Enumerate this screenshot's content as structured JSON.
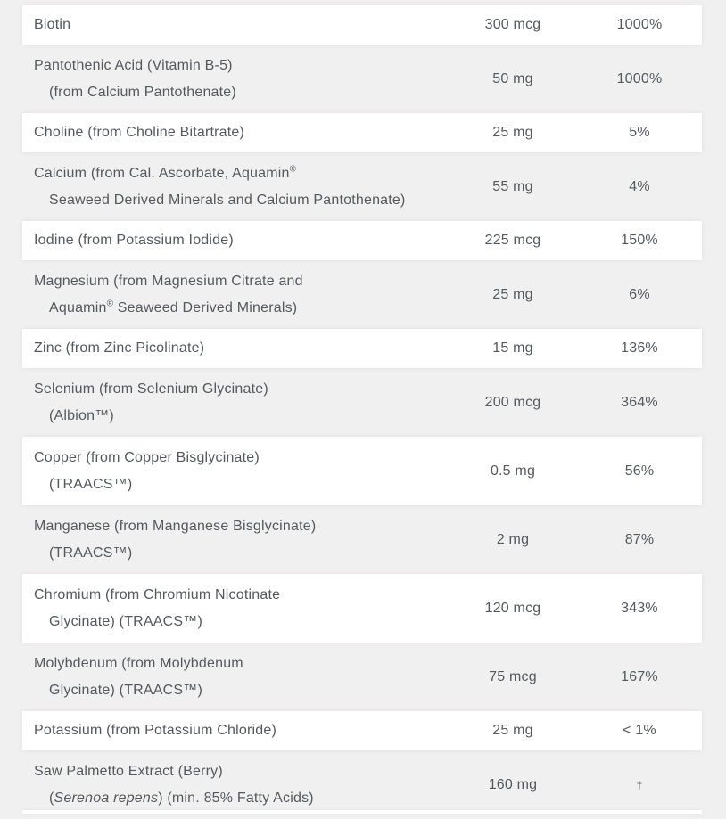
{
  "page": {
    "background_color": "#f1f0f0",
    "row_highlight_color": "#ffffff",
    "text_color": "#54595f"
  },
  "table": {
    "description": "supplement-facts-table",
    "columns": [
      "nutrient",
      "amount",
      "daily_value"
    ],
    "rows": [
      {
        "name_lines": [
          "Biotin"
        ],
        "amount": "300 mcg",
        "dv": "1000%"
      },
      {
        "name_lines": [
          "Pantothenic Acid (Vitamin B-5)",
          "(from Calcium Pantothenate)"
        ],
        "amount": "50 mg",
        "dv": "1000%"
      },
      {
        "name_lines": [
          "Choline (from Choline Bitartrate)"
        ],
        "amount": "25 mg",
        "dv": "5%"
      },
      {
        "name_lines": [
          "Calcium (from Cal. Ascorbate, Aquamin®",
          "Seaweed Derived Minerals and Calcium Pantothenate)"
        ],
        "amount": "55 mg",
        "dv": "4%"
      },
      {
        "name_lines": [
          "Iodine (from Potassium Iodide)"
        ],
        "amount": "225 mcg",
        "dv": "150%"
      },
      {
        "name_lines": [
          "Magnesium (from Magnesium Citrate and",
          "Aquamin® Seaweed Derived Minerals)"
        ],
        "amount": "25 mg",
        "dv": "6%"
      },
      {
        "name_lines": [
          "Zinc (from Zinc Picolinate)"
        ],
        "amount": "15 mg",
        "dv": "136%"
      },
      {
        "name_lines": [
          "Selenium (from Selenium Glycinate)",
          "(Albion™)"
        ],
        "amount": "200 mcg",
        "dv": "364%"
      },
      {
        "name_lines": [
          "Copper (from Copper Bisglycinate)",
          "(TRAACS™)"
        ],
        "amount": "0.5 mg",
        "dv": "56%"
      },
      {
        "name_lines": [
          "Manganese (from Manganese Bisglycinate)",
          "(TRAACS™)"
        ],
        "amount": "2 mg",
        "dv": "87%"
      },
      {
        "name_lines": [
          "Chromium (from Chromium Nicotinate",
          "Glycinate) (TRAACS™)"
        ],
        "amount": "120 mcg",
        "dv": "343%"
      },
      {
        "name_lines": [
          "Molybdenum (from Molybdenum",
          "Glycinate) (TRAACS™)"
        ],
        "amount": "75 mcg",
        "dv": "167%"
      },
      {
        "name_lines": [
          "Potassium (from Potassium Chloride)"
        ],
        "amount": "25 mg",
        "dv": "< 1%"
      },
      {
        "name_lines": [
          "Saw Palmetto Extract (Berry)",
          "(*Serenoa repens*) (min. 85% Fatty Acids)"
        ],
        "amount": "160 mg",
        "dv": "†"
      }
    ]
  }
}
